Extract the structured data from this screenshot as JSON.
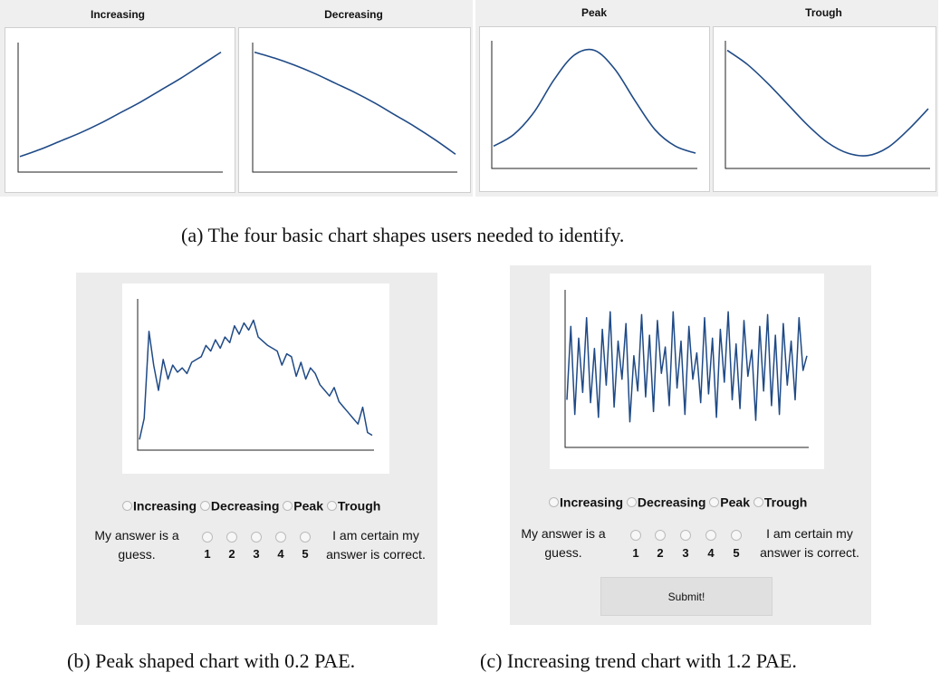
{
  "top_panels": [
    {
      "title": "Increasing"
    },
    {
      "title": "Decreasing"
    },
    {
      "title": "Peak"
    },
    {
      "title": "Trough"
    }
  ],
  "captions": {
    "a": "(a) The four basic chart shapes users needed to identify.",
    "b": "(b) Peak shaped chart with 0.2 PAE.",
    "c": "(c) Increasing trend chart with 1.2 PAE."
  },
  "form": {
    "options": [
      "Increasing",
      "Decreasing",
      "Peak",
      "Trough"
    ],
    "scale_left": [
      "My answer is a",
      "guess."
    ],
    "scale_right": [
      "I am certain my",
      "answer is correct."
    ],
    "scale_numbers": [
      "1",
      "2",
      "3",
      "4",
      "5"
    ],
    "submit_label": "Submit!"
  },
  "colors": {
    "line": "#1f4a86",
    "panel_bg": "#ececec",
    "axis": "#222222"
  },
  "chart_data": [
    {
      "type": "line",
      "name": "Increasing",
      "x": [
        0,
        0.1,
        0.2,
        0.3,
        0.4,
        0.5,
        0.6,
        0.7,
        0.8,
        0.9,
        1.0
      ],
      "values": [
        0.1,
        0.16,
        0.23,
        0.3,
        0.38,
        0.47,
        0.56,
        0.66,
        0.76,
        0.87,
        0.98
      ],
      "ylim": [
        0,
        1
      ]
    },
    {
      "type": "line",
      "name": "Decreasing",
      "x": [
        0,
        0.1,
        0.2,
        0.3,
        0.4,
        0.5,
        0.6,
        0.7,
        0.8,
        0.9,
        1.0
      ],
      "values": [
        0.98,
        0.93,
        0.87,
        0.8,
        0.72,
        0.64,
        0.55,
        0.45,
        0.35,
        0.24,
        0.12
      ],
      "ylim": [
        0,
        1
      ]
    },
    {
      "type": "line",
      "name": "Peak",
      "x": [
        0,
        0.1,
        0.2,
        0.3,
        0.4,
        0.5,
        0.6,
        0.7,
        0.8,
        0.9,
        1.0
      ],
      "values": [
        0.16,
        0.26,
        0.45,
        0.73,
        0.94,
        0.98,
        0.82,
        0.55,
        0.3,
        0.16,
        0.1
      ],
      "ylim": [
        0,
        1
      ]
    },
    {
      "type": "line",
      "name": "Trough",
      "x": [
        0,
        0.1,
        0.2,
        0.3,
        0.4,
        0.5,
        0.6,
        0.7,
        0.8,
        0.9,
        1.0
      ],
      "values": [
        0.98,
        0.86,
        0.7,
        0.52,
        0.34,
        0.19,
        0.1,
        0.08,
        0.15,
        0.3,
        0.48
      ],
      "ylim": [
        0,
        1
      ]
    },
    {
      "type": "line",
      "name": "b",
      "values": [
        0.05,
        0.2,
        0.82,
        0.58,
        0.4,
        0.62,
        0.48,
        0.58,
        0.53,
        0.56,
        0.52,
        0.6,
        0.62,
        0.64,
        0.72,
        0.68,
        0.76,
        0.7,
        0.78,
        0.74,
        0.86,
        0.8,
        0.88,
        0.83,
        0.9,
        0.78,
        0.75,
        0.72,
        0.7,
        0.68,
        0.58,
        0.66,
        0.64,
        0.5,
        0.6,
        0.48,
        0.56,
        0.52,
        0.44,
        0.4,
        0.36,
        0.42,
        0.32,
        0.28,
        0.24,
        0.2,
        0.16,
        0.28,
        0.1,
        0.08
      ],
      "ylim": [
        0,
        1
      ]
    },
    {
      "type": "line",
      "name": "c",
      "values": [
        0.3,
        0.8,
        0.2,
        0.72,
        0.35,
        0.86,
        0.28,
        0.65,
        0.18,
        0.78,
        0.4,
        0.9,
        0.25,
        0.7,
        0.44,
        0.82,
        0.15,
        0.6,
        0.36,
        0.88,
        0.32,
        0.74,
        0.22,
        0.84,
        0.48,
        0.66,
        0.26,
        0.9,
        0.38,
        0.7,
        0.2,
        0.8,
        0.44,
        0.62,
        0.28,
        0.86,
        0.34,
        0.72,
        0.18,
        0.78,
        0.42,
        0.9,
        0.3,
        0.68,
        0.24,
        0.84,
        0.46,
        0.64,
        0.16,
        0.8,
        0.36,
        0.88,
        0.26,
        0.74,
        0.2,
        0.82,
        0.4,
        0.7,
        0.3,
        0.86,
        0.5,
        0.6
      ],
      "ylim": [
        0,
        1
      ]
    }
  ]
}
